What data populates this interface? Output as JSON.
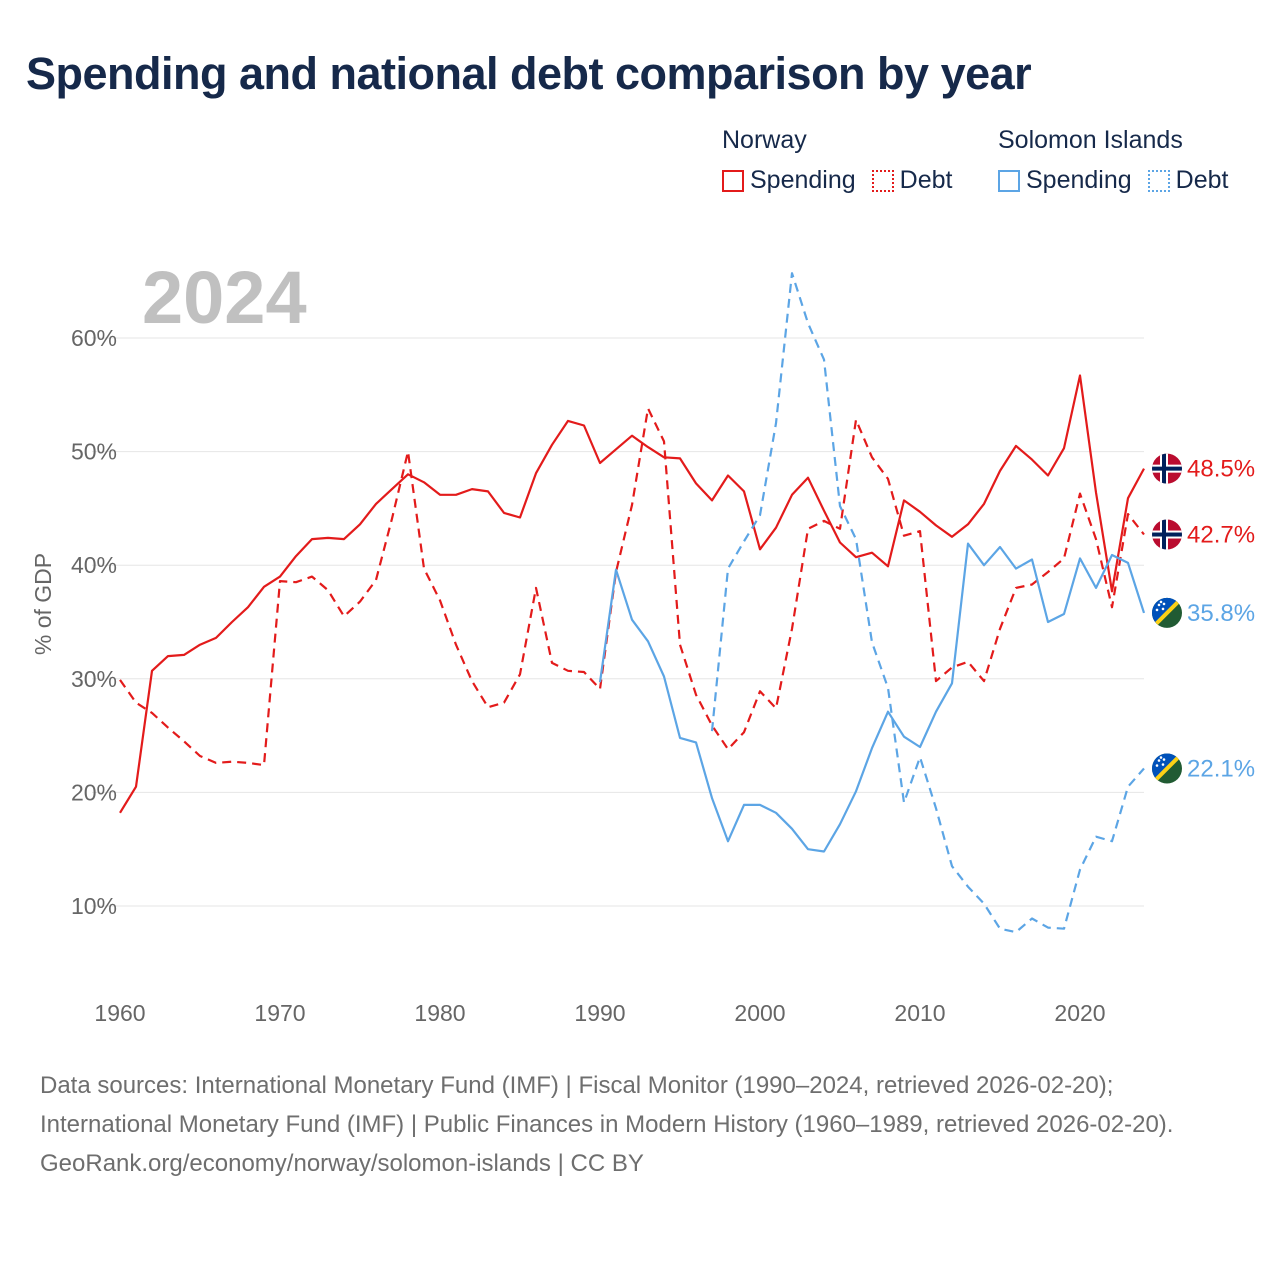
{
  "title": "Spending and national debt comparison by year",
  "legend": {
    "groups": [
      {
        "name": "Norway",
        "spending_label": "Spending",
        "debt_label": "Debt"
      },
      {
        "name": "Solomon Islands",
        "spending_label": "Spending",
        "debt_label": "Debt"
      }
    ]
  },
  "colors": {
    "norway": "#e31b1b",
    "solomon_islands": "#5ca5e5",
    "grid": "#e6e6e6",
    "axis_text": "#666666",
    "year_watermark": "#c0c0c0"
  },
  "footer": {
    "sources": "Data sources: International Monetary Fund (IMF) | Fiscal Monitor (1990–2024, retrieved 2026-02-20); International Monetary Fund (IMF) | Public Finances in Modern History (1960–1989, retrieved 2026-02-20).",
    "credit": "GeoRank.org/economy/norway/solomon-islands | CC BY"
  },
  "chart_data": {
    "type": "line",
    "year_label": "2024",
    "ylabel": "% of GDP",
    "xlim": [
      1960,
      2024
    ],
    "ylim": [
      0,
      65
    ],
    "x_ticks": [
      1960,
      1970,
      1980,
      1990,
      2000,
      2010,
      2020
    ],
    "y_ticks": [
      10,
      20,
      30,
      40,
      50,
      60
    ],
    "y_tick_labels": [
      "10%",
      "20%",
      "30%",
      "40%",
      "50%",
      "60%"
    ],
    "series": [
      {
        "name": "Norway Spending",
        "country": "Norway",
        "metric": "Spending",
        "dashed": false,
        "color": "#e31b1b",
        "end_label": "48.5%",
        "start_year": 1960,
        "values": [
          18.2,
          20.5,
          30.7,
          32.0,
          32.1,
          33.0,
          33.6,
          35.0,
          36.3,
          38.1,
          39.0,
          40.8,
          42.3,
          42.4,
          42.3,
          43.6,
          45.4,
          46.7,
          48.0,
          47.3,
          46.2,
          46.2,
          46.7,
          46.5,
          44.6,
          44.2,
          48.1,
          50.6,
          52.7,
          52.3,
          49.0,
          50.2,
          51.4,
          50.4,
          49.5,
          49.4,
          47.2,
          45.7,
          47.9,
          46.5,
          41.4,
          43.3,
          46.2,
          47.7,
          44.8,
          42.0,
          40.7,
          41.1,
          39.9,
          45.7,
          44.7,
          43.5,
          42.5,
          43.6,
          45.4,
          48.3,
          50.5,
          49.3,
          47.9,
          50.3,
          56.7,
          46.4,
          37.7,
          45.9,
          48.5
        ]
      },
      {
        "name": "Norway Debt",
        "country": "Norway",
        "metric": "Debt",
        "dashed": true,
        "color": "#e31b1b",
        "end_label": "42.7%",
        "start_year": 1960,
        "values": [
          29.9,
          27.9,
          27.0,
          25.7,
          24.5,
          23.2,
          22.6,
          22.7,
          22.6,
          22.4,
          38.6,
          38.5,
          39.0,
          37.8,
          35.5,
          36.8,
          38.7,
          44.1,
          50.0,
          39.7,
          36.9,
          33.0,
          29.8,
          27.5,
          27.9,
          30.4,
          38.0,
          31.4,
          30.7,
          30.6,
          29.1,
          39.4,
          45.3,
          53.8,
          50.9,
          33.0,
          28.6,
          25.9,
          23.8,
          25.3,
          28.9,
          27.4,
          34.4,
          43.2,
          43.9,
          43.2,
          52.8,
          49.5,
          47.6,
          42.6,
          43.0,
          29.8,
          31.0,
          31.5,
          29.8,
          34.4,
          38.0,
          38.3,
          39.4,
          40.6,
          46.3,
          42.3,
          36.3,
          44.5,
          42.7
        ]
      },
      {
        "name": "Solomon Islands Spending",
        "country": "Solomon Islands",
        "metric": "Spending",
        "dashed": false,
        "color": "#5ca5e5",
        "end_label": "35.8%",
        "start_year": 1990,
        "values": [
          29.7,
          39.6,
          35.2,
          33.3,
          30.2,
          24.8,
          24.4,
          19.5,
          15.7,
          18.9,
          18.9,
          18.2,
          16.8,
          15.0,
          14.8,
          17.2,
          20.1,
          23.9,
          27.1,
          24.9,
          24.0,
          27.1,
          29.6,
          41.9,
          40.0,
          41.6,
          39.7,
          40.5,
          35.0,
          35.7,
          40.6,
          38.0,
          40.9,
          40.2,
          35.8
        ]
      },
      {
        "name": "Solomon Islands Debt",
        "country": "Solomon Islands",
        "metric": "Debt",
        "dashed": true,
        "color": "#5ca5e5",
        "end_label": "22.1%",
        "start_year": 1997,
        "values": [
          25.4,
          39.7,
          42.1,
          44.4,
          52.5,
          65.7,
          61.3,
          58.1,
          45.2,
          42.3,
          33.2,
          29.2,
          19.1,
          23.1,
          18.6,
          13.5,
          11.7,
          10.2,
          8.0,
          7.7,
          8.9,
          8.1,
          8.0,
          13.2,
          16.1,
          15.7,
          20.5,
          22.1
        ]
      }
    ]
  }
}
